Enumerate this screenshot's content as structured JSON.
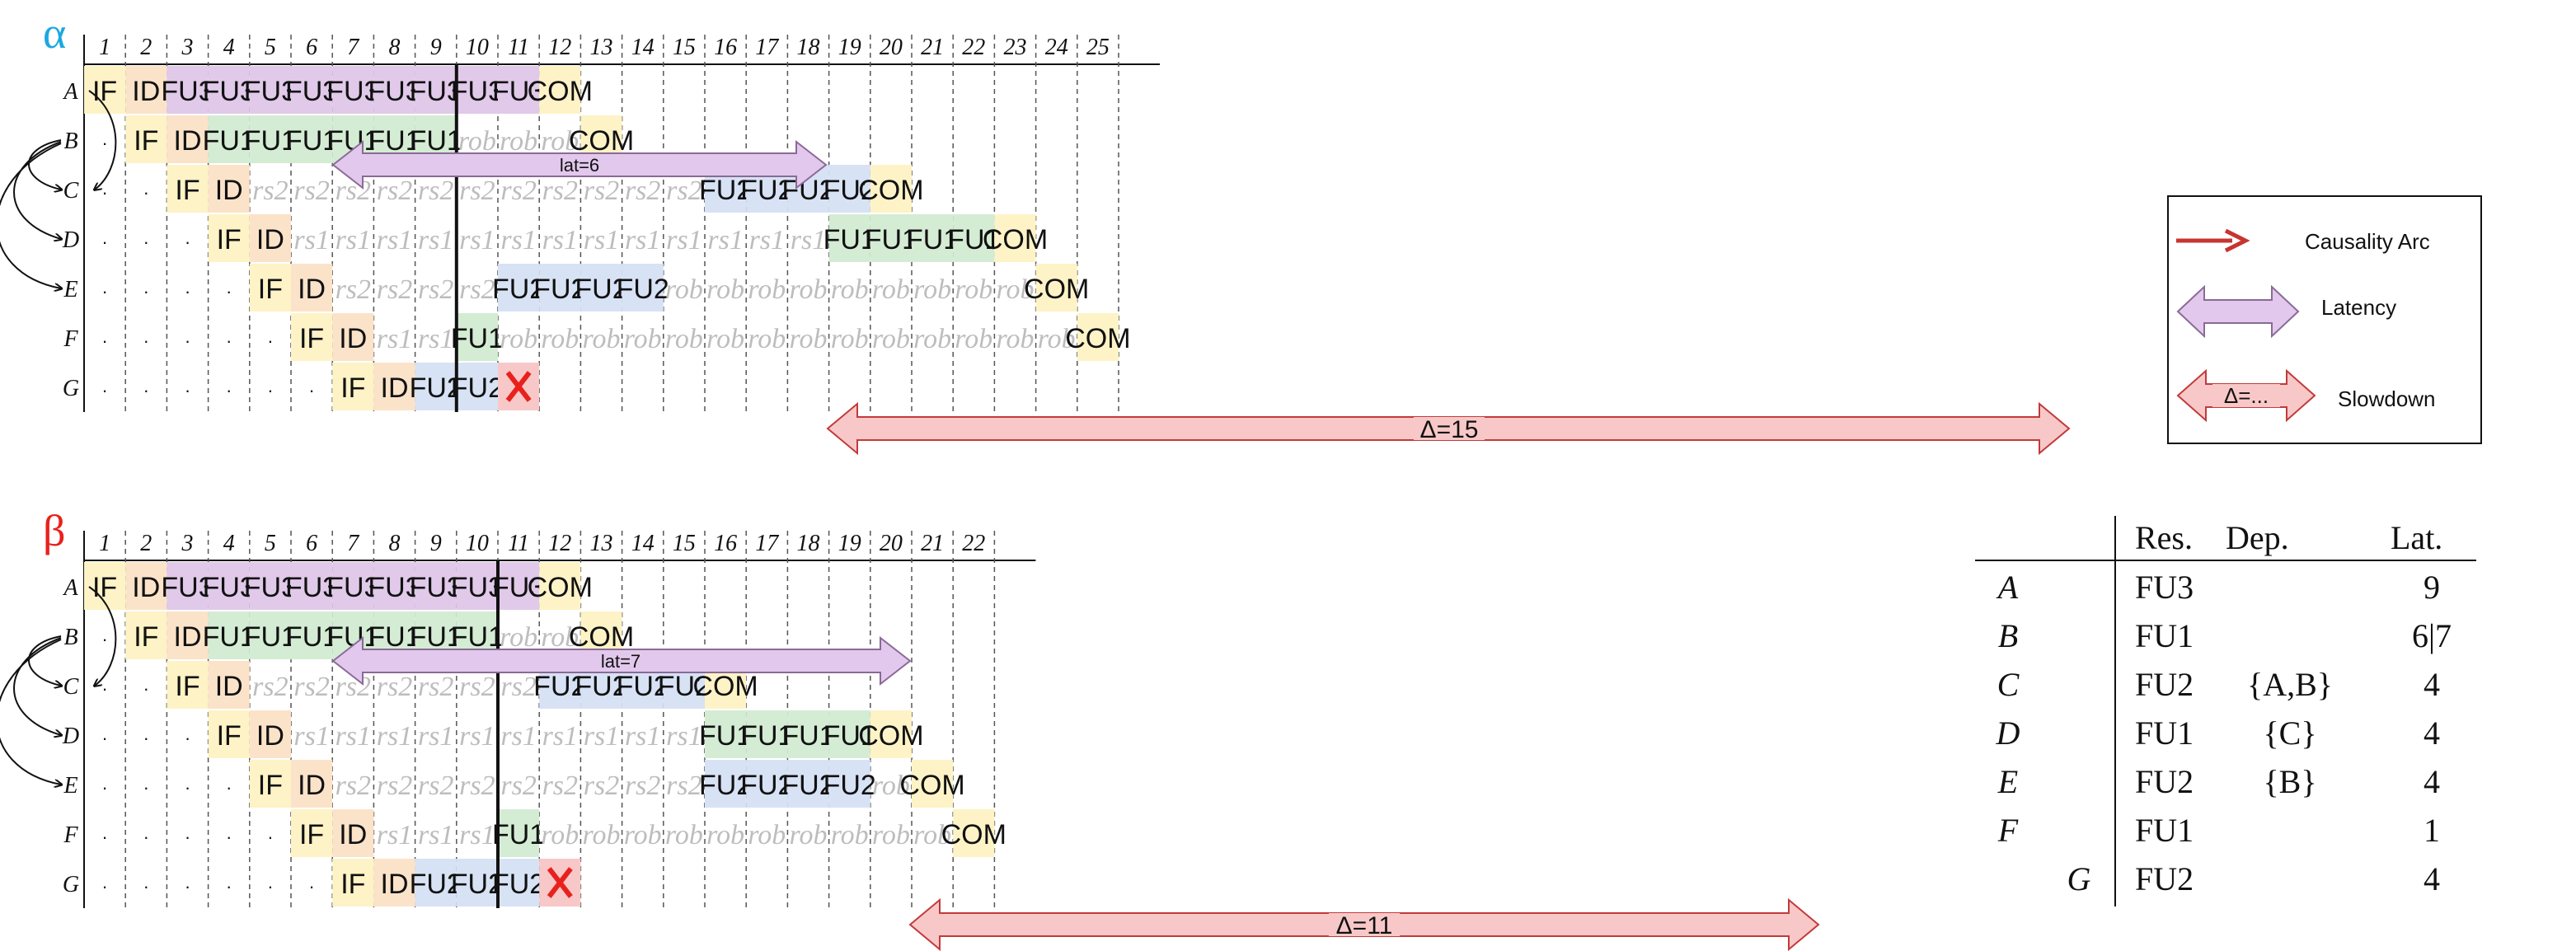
{
  "colors": {
    "IF": "#fdf3c6",
    "ID": "#fbe3c9",
    "FU3": "#e1c9ea",
    "FU1": "#d4ecd4",
    "FU2": "#d7e2f5",
    "COM": "#fdf3c6",
    "slowdown": "#f8c8c8",
    "alpha": "#1aa8e0",
    "beta": "#e8211c",
    "causality": "#c8342f",
    "latency": "#e2c8ec"
  },
  "row_labels": [
    "A",
    "B",
    "C",
    "D",
    "E",
    "F",
    "G"
  ],
  "alpha": {
    "title": "α",
    "columns": [
      "1",
      "2",
      "3",
      "4",
      "5",
      "6",
      "7",
      "8",
      "9",
      "10",
      "11",
      "12",
      "13",
      "14",
      "15",
      "16",
      "17",
      "18",
      "19",
      "20",
      "21",
      "22",
      "23",
      "24",
      "25"
    ],
    "divider_after_col": 9,
    "rows": [
      [
        "IF",
        "ID",
        "FU3",
        "FU3",
        "FU3",
        "FU3",
        "FU3",
        "FU3",
        "FU3",
        "FU3",
        "FU3",
        "COM"
      ],
      [
        ".",
        "IF",
        "ID",
        "FU1",
        "FU1",
        "FU1",
        "FU1",
        "FU1",
        "FU1",
        "rob",
        "rob",
        "rob",
        "COM"
      ],
      [
        ".",
        ".",
        "IF",
        "ID",
        "rs2",
        "rs2",
        "rs2",
        "rs2",
        "rs2",
        "rs2",
        "rs2",
        "rs2",
        "rs2",
        "rs2",
        "rs2",
        "FU2",
        "FU2",
        "FU2",
        "FU2",
        "COM"
      ],
      [
        ".",
        ".",
        ".",
        "IF",
        "ID",
        "rs1",
        "rs1",
        "rs1",
        "rs1",
        "rs1",
        "rs1",
        "rs1",
        "rs1",
        "rs1",
        "rs1",
        "rs1",
        "rs1",
        "rs1",
        "FU1",
        "FU1",
        "FU1",
        "FU1",
        "COM"
      ],
      [
        ".",
        ".",
        ".",
        ".",
        "IF",
        "ID",
        "rs2",
        "rs2",
        "rs2",
        "rs2",
        "FU2",
        "FU2",
        "FU2",
        "FU2",
        "rob",
        "rob",
        "rob",
        "rob",
        "rob",
        "rob",
        "rob",
        "rob",
        "rob",
        "COM"
      ],
      [
        ".",
        ".",
        ".",
        ".",
        ".",
        "IF",
        "ID",
        "rs1",
        "rs1",
        "FU1",
        "rob",
        "rob",
        "rob",
        "rob",
        "rob",
        "rob",
        "rob",
        "rob",
        "rob",
        "rob",
        "rob",
        "rob",
        "rob",
        "rob",
        "COM"
      ],
      [
        ".",
        ".",
        ".",
        ".",
        ".",
        ".",
        "IF",
        "ID",
        "FU2",
        "FU2",
        "X"
      ]
    ],
    "latency_label": "lat=6",
    "slowdown_label": "Δ=15"
  },
  "beta": {
    "title": "β",
    "columns": [
      "1",
      "2",
      "3",
      "4",
      "5",
      "6",
      "7",
      "8",
      "9",
      "10",
      "11",
      "12",
      "13",
      "14",
      "15",
      "16",
      "17",
      "18",
      "19",
      "20",
      "21",
      "22"
    ],
    "divider_after_col": 10,
    "rows": [
      [
        "IF",
        "ID",
        "FU3",
        "FU3",
        "FU3",
        "FU3",
        "FU3",
        "FU3",
        "FU3",
        "FU3",
        "FU3",
        "COM"
      ],
      [
        ".",
        "IF",
        "ID",
        "FU1",
        "FU1",
        "FU1",
        "FU1",
        "FU1",
        "FU1",
        "FU1",
        "rob",
        "rob",
        "COM"
      ],
      [
        ".",
        ".",
        "IF",
        "ID",
        "rs2",
        "rs2",
        "rs2",
        "rs2",
        "rs2",
        "rs2",
        "rs2",
        "FU2",
        "FU2",
        "FU2",
        "FU2",
        "COM"
      ],
      [
        ".",
        ".",
        ".",
        "IF",
        "ID",
        "rs1",
        "rs1",
        "rs1",
        "rs1",
        "rs1",
        "rs1",
        "rs1",
        "rs1",
        "rs1",
        "rs1",
        "FU1",
        "FU1",
        "FU1",
        "FU1",
        "COM"
      ],
      [
        ".",
        ".",
        ".",
        ".",
        "IF",
        "ID",
        "rs2",
        "rs2",
        "rs2",
        "rs2",
        "rs2",
        "rs2",
        "rs2",
        "rs2",
        "rs2",
        "FU2",
        "FU2",
        "FU2",
        "FU2",
        "rob",
        "COM"
      ],
      [
        ".",
        ".",
        ".",
        ".",
        ".",
        "IF",
        "ID",
        "rs1",
        "rs1",
        "rs1",
        "FU1",
        "rob",
        "rob",
        "rob",
        "rob",
        "rob",
        "rob",
        "rob",
        "rob",
        "rob",
        "rob",
        "COM"
      ],
      [
        ".",
        ".",
        ".",
        ".",
        ".",
        ".",
        "IF",
        "ID",
        "FU2",
        "FU2",
        "FU2",
        "X"
      ]
    ],
    "latency_label": "lat=7",
    "slowdown_label": "Δ=11"
  },
  "legend": {
    "causality": "Causality Arc",
    "latency": "Latency",
    "slowdown_inner": "Δ=...",
    "slowdown": "Slowdown"
  },
  "table": {
    "headers": [
      "Res.",
      "Dep.",
      "Lat."
    ],
    "rows": [
      {
        "name": "A",
        "res": "FU3",
        "dep": "",
        "lat": "9"
      },
      {
        "name": "B",
        "res": "FU1",
        "dep": "",
        "lat": "6|7"
      },
      {
        "name": "C",
        "res": "FU2",
        "dep": "{A,B}",
        "lat": "4"
      },
      {
        "name": "D",
        "res": "FU1",
        "dep": "{C}",
        "lat": "4"
      },
      {
        "name": "E",
        "res": "FU2",
        "dep": "{B}",
        "lat": "4"
      },
      {
        "name": "F",
        "res": "FU1",
        "dep": "",
        "lat": "1"
      },
      {
        "name": "G",
        "res": "FU2",
        "dep": "",
        "lat": "4"
      }
    ]
  }
}
